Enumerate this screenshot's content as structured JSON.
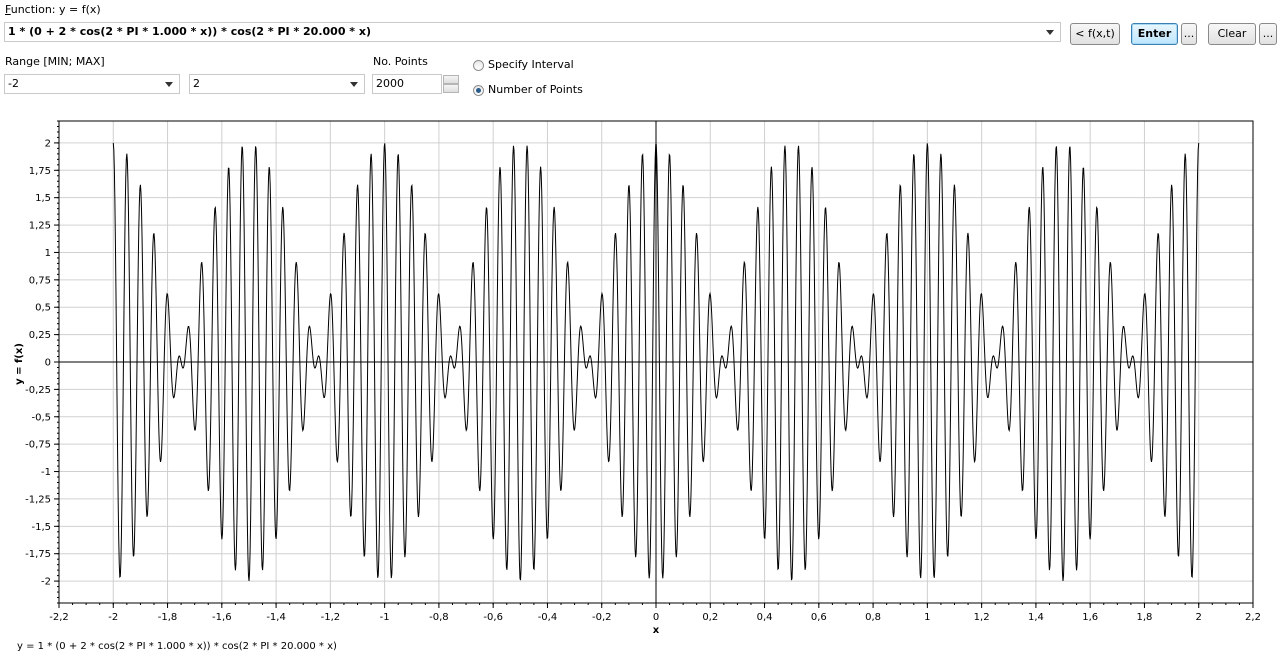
{
  "function_label_prefix": "F",
  "function_label_rest": "unction: y = f(x)",
  "function_input": "1 * (0 + 2 * cos(2 * PI * 1.000 * x)) * cos(2 * PI * 20.000 * x)",
  "buttons": {
    "fxt": "< f(x,t)",
    "enter": "Enter",
    "more1": "...",
    "clear": "Clear",
    "more2": "..."
  },
  "range_label": "Range [MIN; MAX]",
  "range_min": "-2",
  "range_max": "2",
  "points_label": "No. Points",
  "points_value": "2000",
  "radio_interval": "Specify Interval",
  "radio_points": "Number of Points",
  "footer_formula": "y = 1 * (0 + 2 * cos(2 * PI * 1.000 * x)) * cos(2 * PI * 20.000 * x)",
  "chart_data": {
    "type": "line",
    "xlabel": "x",
    "ylabel": "y = f(x)",
    "xlim": [
      -2.2,
      2.2
    ],
    "ylim": [
      -2.2,
      2.2
    ],
    "x_ticks": [
      "-2,2",
      "-2",
      "-1,8",
      "-1,6",
      "-1,4",
      "-1,2",
      "-1",
      "-0,8",
      "-0,6",
      "-0,4",
      "-0,2",
      "0",
      "0,2",
      "0,4",
      "0,6",
      "0,8",
      "1",
      "1,2",
      "1,4",
      "1,6",
      "1,8",
      "2",
      "2,2"
    ],
    "y_ticks": [
      "2",
      "1,75",
      "1,5",
      "1,25",
      "1",
      "0,75",
      "0,5",
      "0,25",
      "0",
      "-0,25",
      "-0,5",
      "-0,75",
      "-1",
      "-1,25",
      "-1,5",
      "-1,75",
      "-2"
    ],
    "function": "2 * cos(2*PI*1*x) * cos(2*PI*20*x)",
    "x_range": [
      -2,
      2
    ],
    "points": 2000,
    "grid": true
  }
}
